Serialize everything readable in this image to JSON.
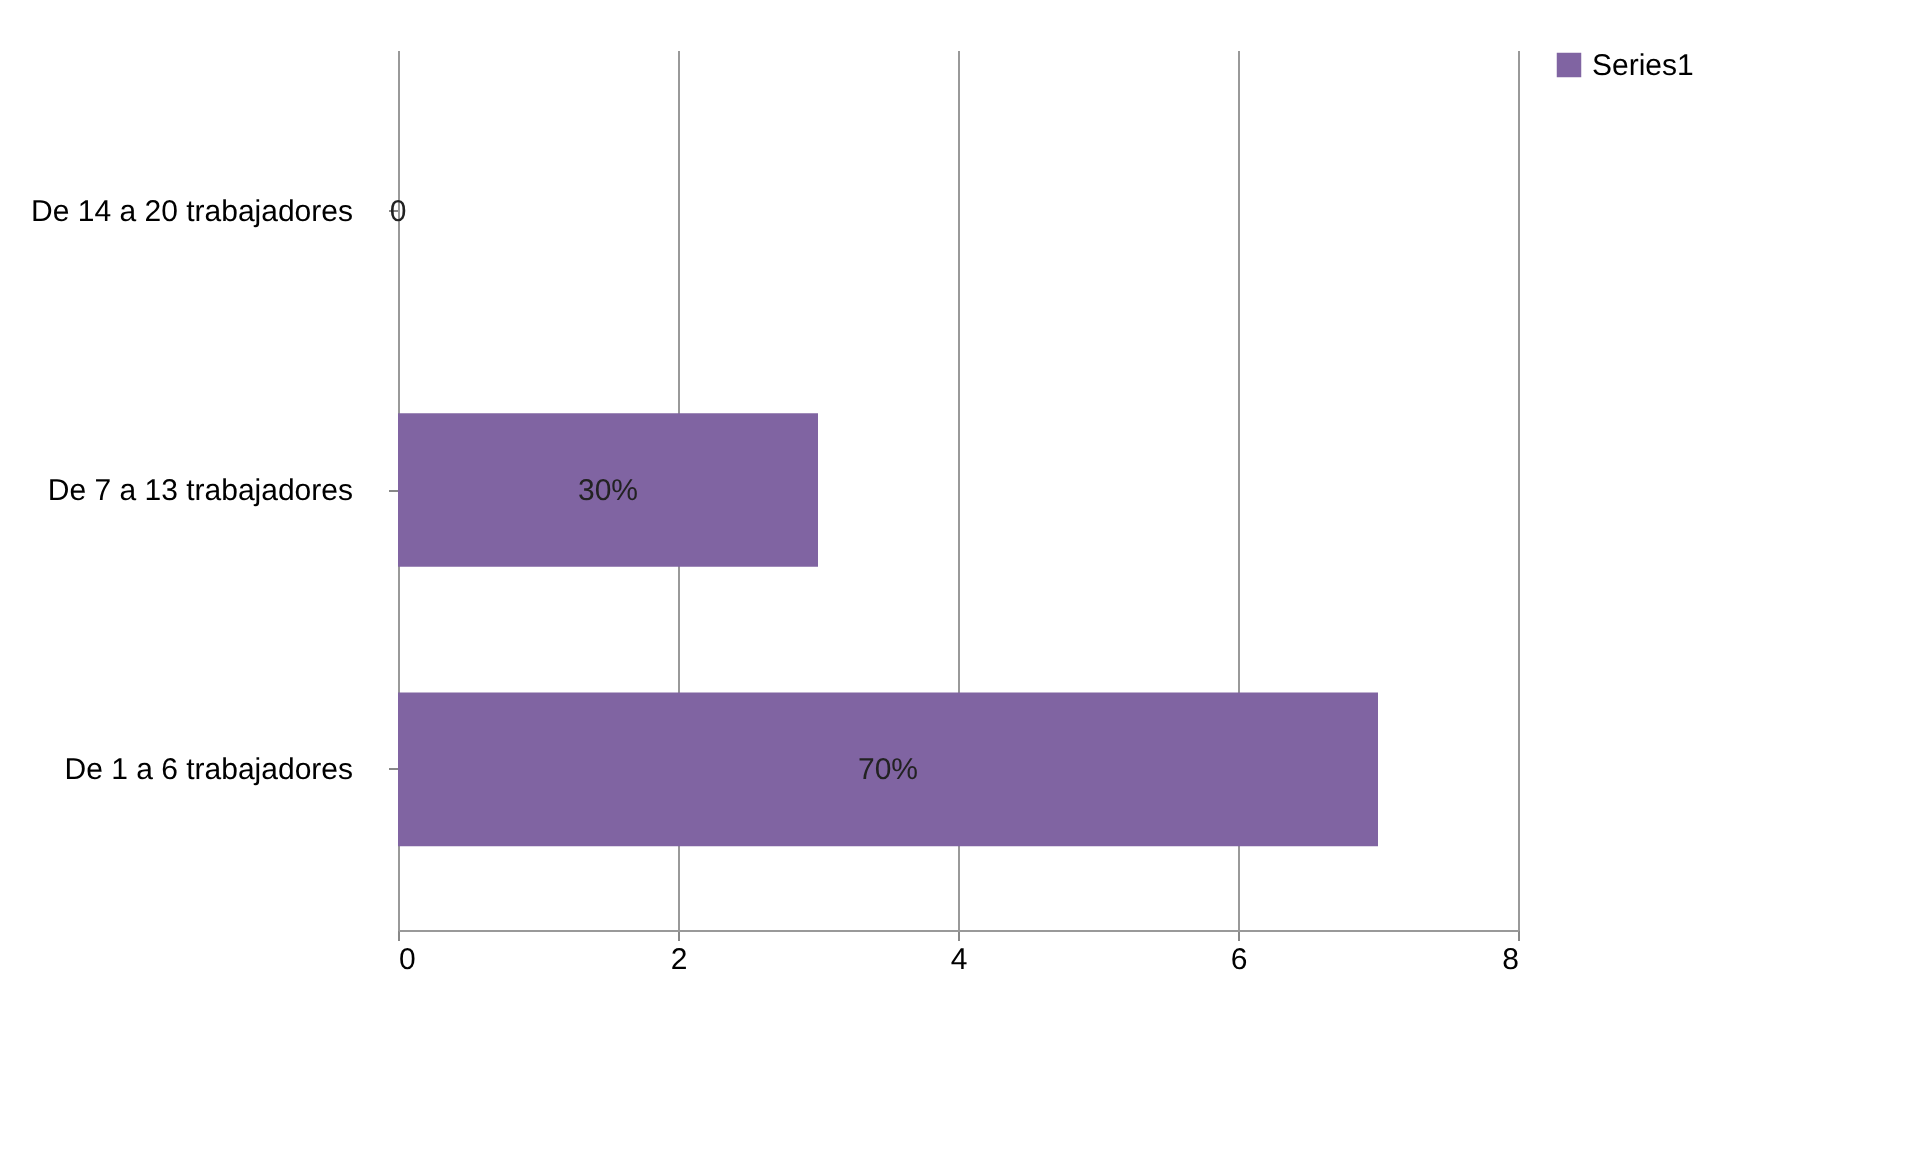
{
  "chart_data": {
    "type": "bar",
    "orientation": "horizontal",
    "categories": [
      "De 14 a 20 trabajadores",
      "De 7 a 13 trabajadores",
      "De 1 a 6 trabajadores"
    ],
    "series": [
      {
        "name": "Series1",
        "color": "#8064a2",
        "values": [
          0,
          3,
          7
        ]
      }
    ],
    "annotations": [
      "0",
      "30%",
      "70%"
    ],
    "xlim": [
      0,
      8
    ],
    "xticks": [
      0,
      2,
      4,
      6,
      8
    ],
    "grid": "x",
    "legend": "right"
  }
}
